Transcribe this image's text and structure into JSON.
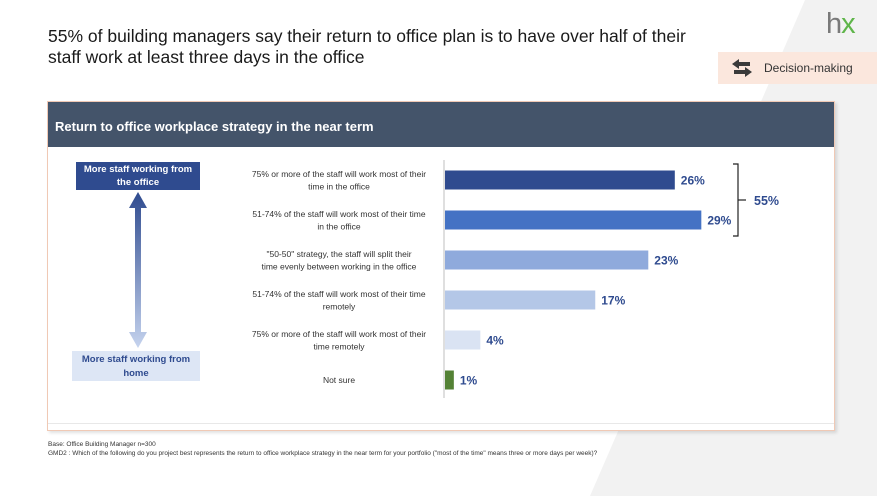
{
  "headline": "55% of building managers say their return to office plan is to have over half of their staff work at least three days in the office",
  "logo": {
    "h": "h",
    "x": "x"
  },
  "tag": {
    "label": "Decision-making",
    "icon": "swap-arrows-icon"
  },
  "panel": {
    "title": "Return to office workplace strategy in the near term"
  },
  "scale_labels": {
    "top": "More staff working from the office",
    "bottom": "More staff working from home"
  },
  "bracket_label": "55%",
  "colors": {
    "header": "#44546a",
    "bars": [
      "#2f4b8f",
      "#4472c4",
      "#8faadc",
      "#b4c7e7",
      "#dae3f3",
      "#548235"
    ],
    "label_top_bg": "#2f4b8f",
    "label_bottom_bg": "#dde6f5"
  },
  "chart_data": {
    "type": "bar",
    "orientation": "horizontal",
    "categories": [
      "75% or more of the staff will work most of their time in the office",
      "51-74% of the staff will work most of their time in the office",
      "\"50-50\" strategy, the staff will split their time evenly between working in the office",
      "51-74% of the staff will work most of their time remotely",
      "75% or more of the staff will work most of their time remotely",
      "Not sure"
    ],
    "values": [
      26,
      29,
      23,
      17,
      4,
      1
    ],
    "value_labels": [
      "26%",
      "29%",
      "23%",
      "17%",
      "4%",
      "1%"
    ],
    "xlim": [
      0,
      31
    ],
    "grid": false
  },
  "footnote": {
    "base": "Base: Office Building Manager n=300",
    "question": "GMD2 : Which of the following do you project best represents the return to office workplace strategy in the near term for your portfolio (\"most of the time\" means three or more days per week)?"
  }
}
